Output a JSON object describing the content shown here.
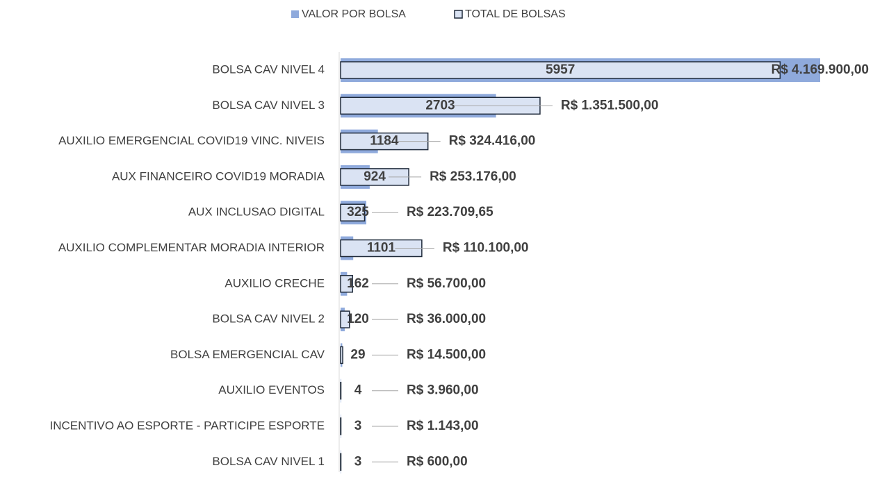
{
  "chart_data": {
    "type": "bar",
    "orientation": "horizontal",
    "categories": [
      "BOLSA CAV NIVEL 4",
      "BOLSA CAV NIVEL 3",
      "AUXILIO EMERGENCIAL COVID19 VINC. NIVEIS",
      "AUX FINANCEIRO COVID19 MORADIA",
      "AUX INCLUSAO DIGITAL",
      "AUXILIO COMPLEMENTAR MORADIA INTERIOR",
      "AUXILIO CRECHE",
      "BOLSA CAV NIVEL 2",
      "BOLSA EMERGENCIAL CAV",
      "AUXILIO EVENTOS",
      "INCENTIVO AO ESPORTE - PARTICIPE ESPORTE",
      "BOLSA CAV NIVEL 1"
    ],
    "series": [
      {
        "name": "VALOR POR BOLSA",
        "color": "#8faadc",
        "values": [
          4169900,
          1351500,
          324416,
          253176,
          223709.65,
          110100,
          56700,
          36000,
          14500,
          3960,
          1143,
          600
        ],
        "value_labels": [
          "R$ 4.169.900,00",
          "R$ 1.351.500,00",
          "R$ 324.416,00",
          "R$ 253.176,00",
          "R$ 223.709,65",
          "R$ 110.100,00",
          "R$ 56.700,00",
          "R$ 36.000,00",
          "R$ 14.500,00",
          "R$ 3.960,00",
          "R$ 1.143,00",
          "R$ 600,00"
        ]
      },
      {
        "name": "TOTAL DE BOLSAS",
        "color": "#dae3f3",
        "values": [
          5957,
          2703,
          1184,
          924,
          325,
          1101,
          162,
          120,
          29,
          4,
          3,
          3
        ],
        "axis": "x2"
      }
    ],
    "xlim": [
      0,
      4169900
    ],
    "x2lim": [
      0,
      6500
    ],
    "legend": "top"
  }
}
